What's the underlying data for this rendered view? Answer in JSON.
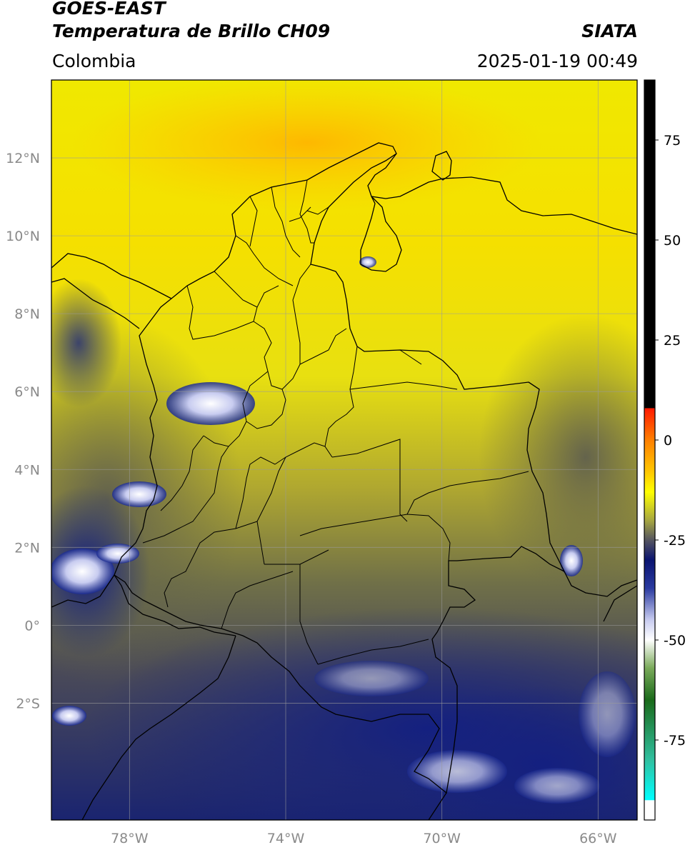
{
  "header": {
    "satellite": "GOES-EAST",
    "product": "Temperatura de Brillo CH09",
    "brand": "SIATA",
    "region": "Colombia",
    "datetime": "2025-01-19 00:49"
  },
  "map": {
    "lon_range": [
      -80,
      -65
    ],
    "lat_range": [
      -5,
      14
    ],
    "lon_ticks": [
      {
        "value": -78,
        "label": "78°W"
      },
      {
        "value": -74,
        "label": "74°W"
      },
      {
        "value": -70,
        "label": "70°W"
      },
      {
        "value": -66,
        "label": "66°W"
      }
    ],
    "lat_ticks": [
      {
        "value": 12,
        "label": "12°N"
      },
      {
        "value": 10,
        "label": "10°N"
      },
      {
        "value": 8,
        "label": "8°N"
      },
      {
        "value": 6,
        "label": "6°N"
      },
      {
        "value": 4,
        "label": "4°N"
      },
      {
        "value": 2,
        "label": "2°N"
      },
      {
        "value": 0,
        "label": "0°"
      },
      {
        "value": -2,
        "label": "2°S"
      }
    ],
    "colors": {
      "warm": "#f5e400",
      "orange": "#ffb300",
      "olive": "#7c7c40",
      "navy": "#0a1a7a",
      "cloud": "#eef0ff"
    }
  },
  "colorbar": {
    "range": [
      -95,
      90
    ],
    "ticks": [
      {
        "value": 75,
        "label": "75"
      },
      {
        "value": 50,
        "label": "50"
      },
      {
        "value": 25,
        "label": "25"
      },
      {
        "value": 0,
        "label": "0"
      },
      {
        "value": -25,
        "label": "-25"
      },
      {
        "value": -50,
        "label": "-50"
      },
      {
        "value": -75,
        "label": "-75"
      }
    ],
    "stops": [
      {
        "value": 90,
        "color": "#000000"
      },
      {
        "value": 8,
        "color": "#000000"
      },
      {
        "value": 7.9,
        "color": "#ff1a00"
      },
      {
        "value": 0,
        "color": "#ff8000"
      },
      {
        "value": -8,
        "color": "#ffc800"
      },
      {
        "value": -13,
        "color": "#ffff00"
      },
      {
        "value": -20,
        "color": "#a8a840"
      },
      {
        "value": -25,
        "color": "#555560"
      },
      {
        "value": -30,
        "color": "#0a1470"
      },
      {
        "value": -37,
        "color": "#2a3aa0"
      },
      {
        "value": -45,
        "color": "#c8ccf0"
      },
      {
        "value": -50,
        "color": "#ffffff"
      },
      {
        "value": -57,
        "color": "#7aaa5a"
      },
      {
        "value": -65,
        "color": "#1a6a1a"
      },
      {
        "value": -80,
        "color": "#30c0a0"
      },
      {
        "value": -90,
        "color": "#00ffff"
      },
      {
        "value": -90.1,
        "color": "#ffffff"
      },
      {
        "value": -95,
        "color": "#ffffff"
      }
    ]
  }
}
